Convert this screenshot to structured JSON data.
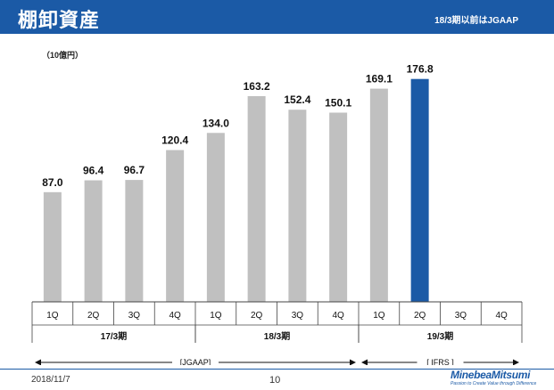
{
  "header": {
    "title": "棚卸資産",
    "note": "18/3期以前はJGAAP"
  },
  "footer": {
    "date": "2018/11/7",
    "page": "10",
    "logo": "MinebeaMitsumi",
    "tagline": "Passion to Create Value through Difference"
  },
  "colors": {
    "header_bg": "#1b5aa6",
    "bar_default": "#c0c0c0",
    "bar_highlight": "#1b5aa6"
  },
  "chart_data": {
    "type": "bar",
    "unit_label": "（10億円）",
    "categories": [
      "1Q",
      "2Q",
      "3Q",
      "4Q",
      "1Q",
      "2Q",
      "3Q",
      "4Q",
      "1Q",
      "2Q",
      "3Q",
      "4Q"
    ],
    "values": [
      87.0,
      96.4,
      96.7,
      120.4,
      134.0,
      163.2,
      152.4,
      150.1,
      169.1,
      176.8,
      null,
      null
    ],
    "value_labels": [
      "87.0",
      "96.4",
      "96.7",
      "120.4",
      "134.0",
      "163.2",
      "152.4",
      "150.1",
      "169.1",
      "176.8",
      "",
      ""
    ],
    "highlight_index": 9,
    "ylim": [
      0,
      190
    ],
    "groups": [
      {
        "label": "17/3期",
        "start": 0,
        "end": 3
      },
      {
        "label": "18/3期",
        "start": 4,
        "end": 7
      },
      {
        "label": "19/3期",
        "start": 8,
        "end": 11
      }
    ],
    "standards": [
      {
        "label": "[JGAAP]",
        "start": 0,
        "end": 7
      },
      {
        "label": "[ IFRS ]",
        "start": 8,
        "end": 11
      }
    ]
  }
}
